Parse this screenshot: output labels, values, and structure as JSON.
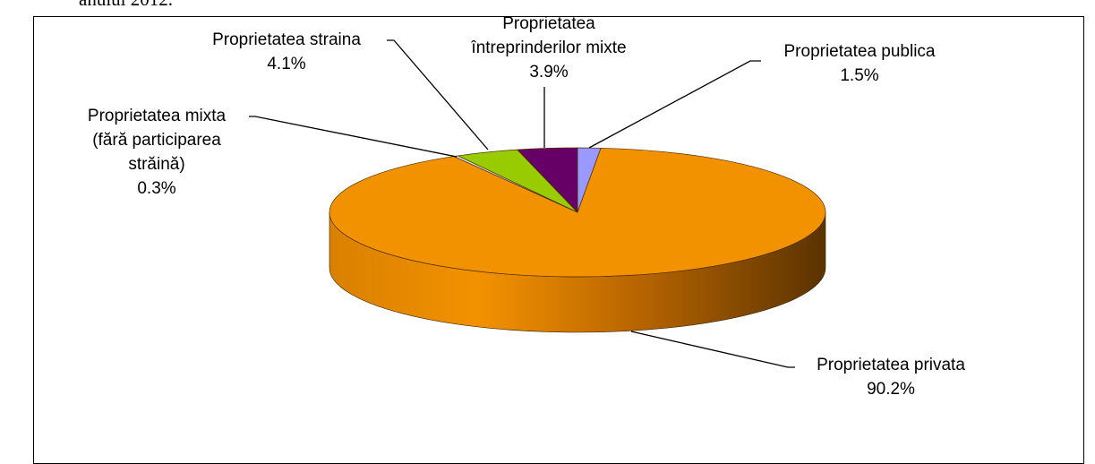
{
  "caption": "anului 2012.",
  "chart_data": {
    "type": "pie3d",
    "categories": [
      "Proprietatea publica",
      "Proprietatea privata",
      "Proprietatea mixta\n(fără participarea\nstrăină)",
      "Proprietatea straina",
      "Proprietatea\nîntreprinderilor mixte"
    ],
    "values": [
      1.5,
      90.2,
      0.3,
      4.1,
      3.9
    ],
    "value_labels": [
      "1.5%",
      "90.2%",
      "0.3%",
      "4.1%",
      "3.9%"
    ],
    "colors": [
      "#9999ff",
      "#f39200",
      "#e0e0e0",
      "#99cc00",
      "#660066"
    ]
  }
}
